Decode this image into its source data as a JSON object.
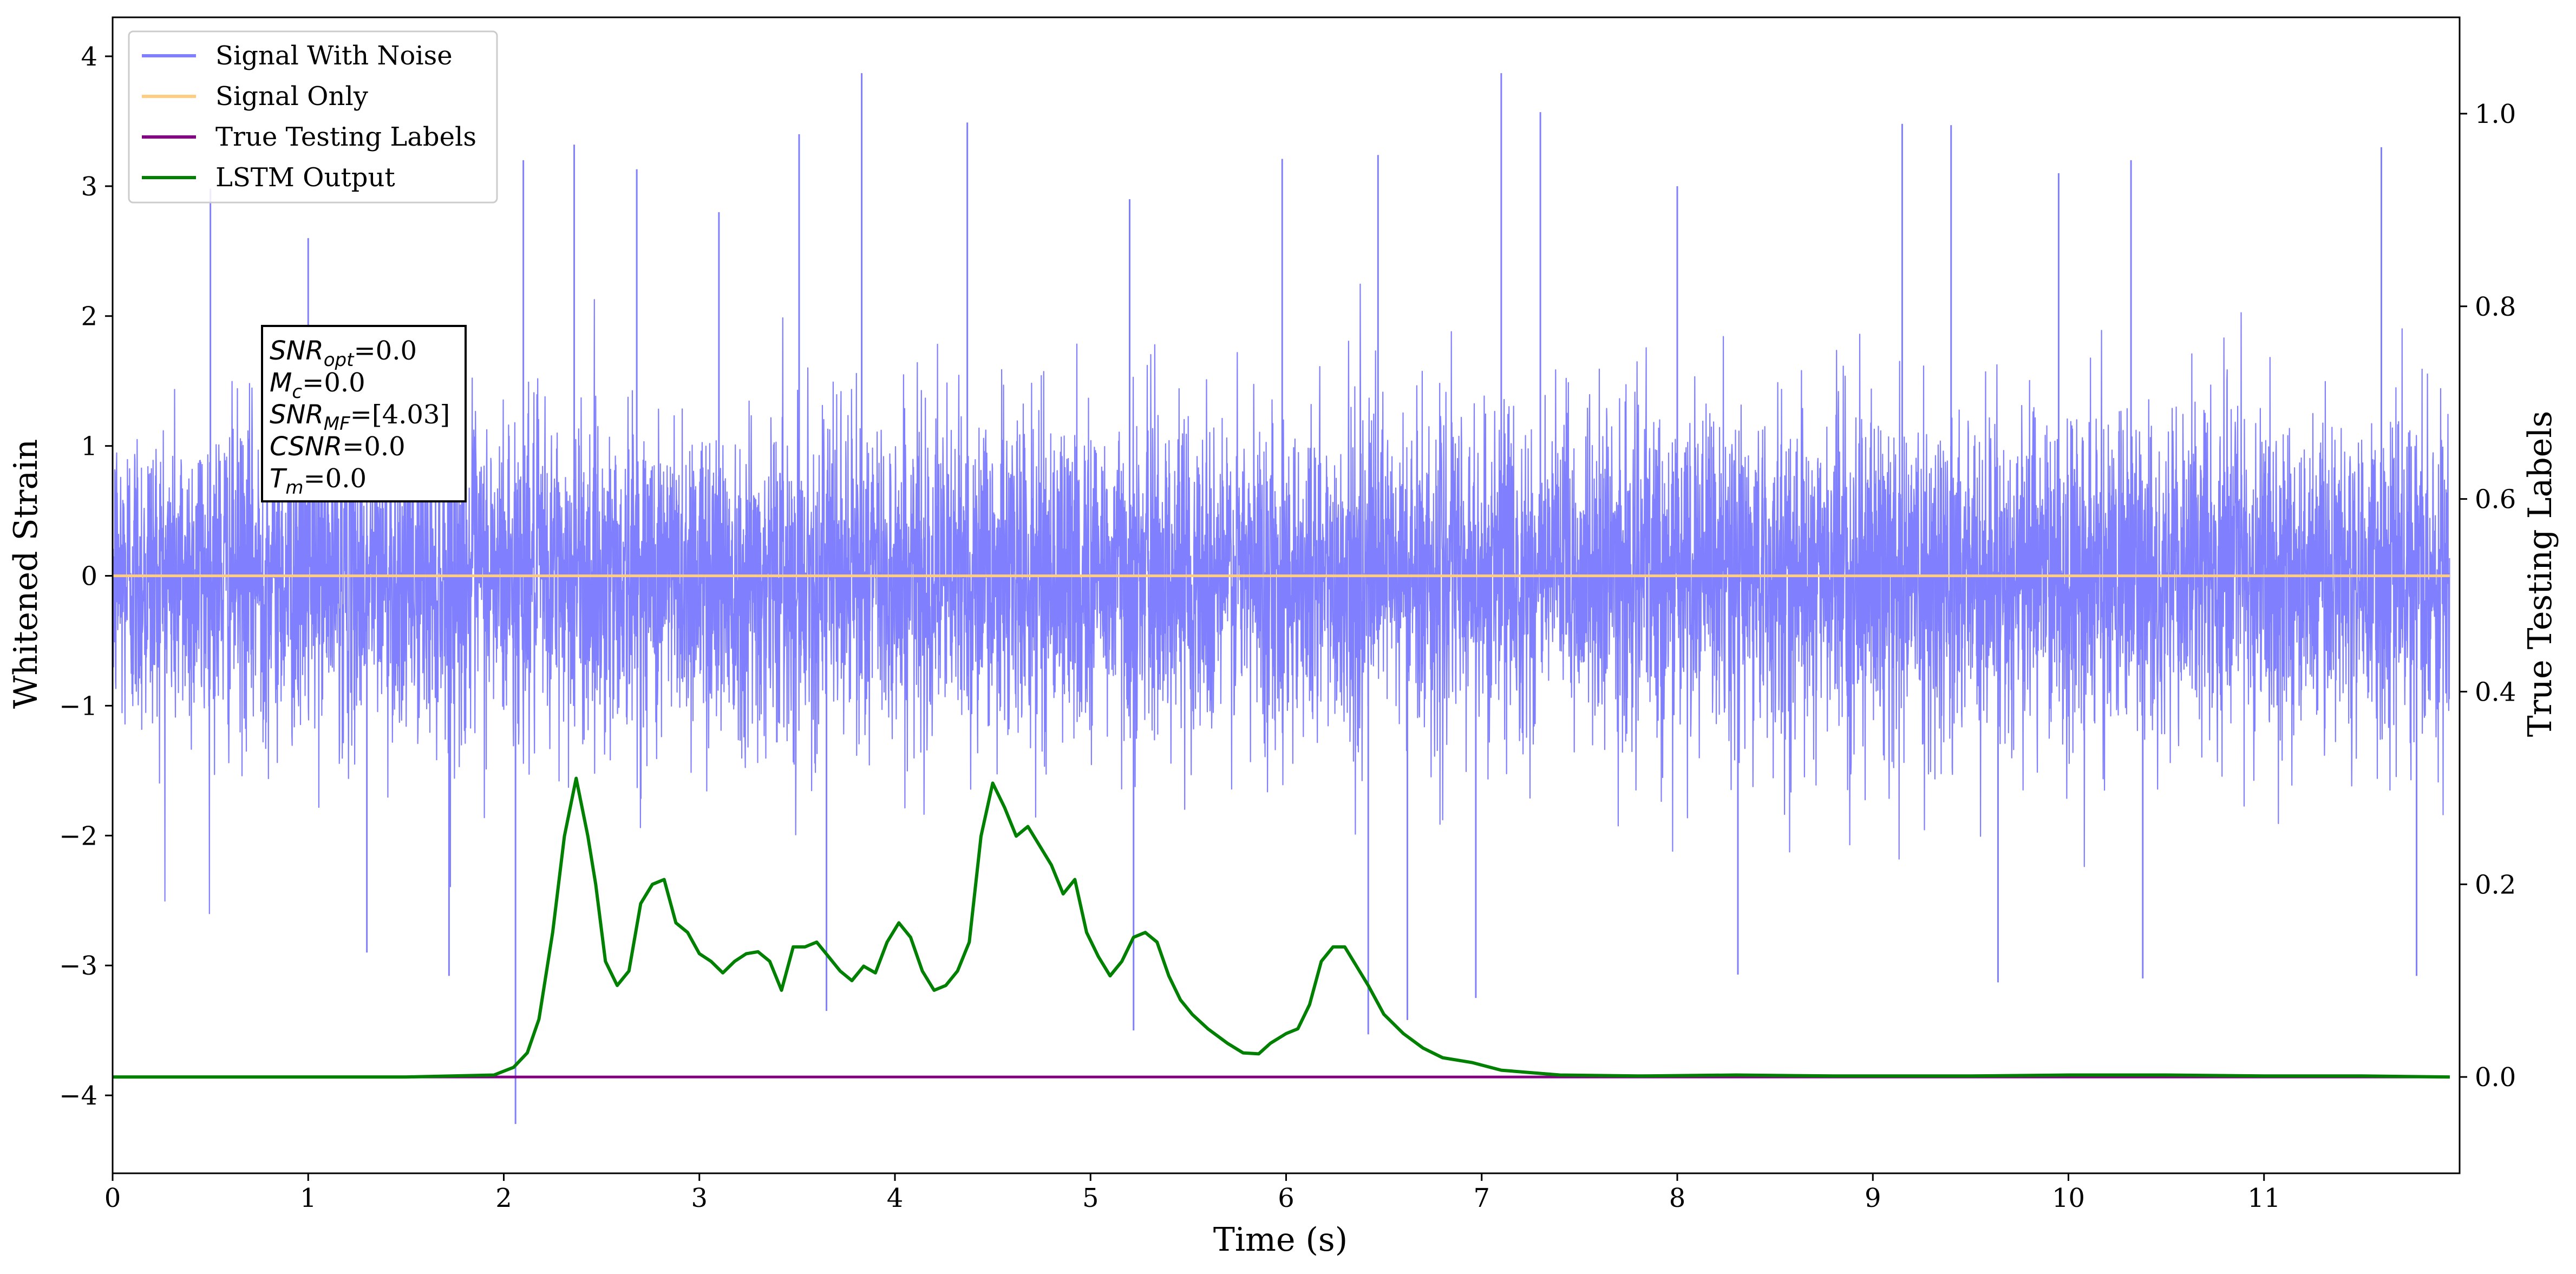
{
  "chart_data": {
    "type": "line",
    "xlabel": "Time (s)",
    "ylabel": "Whitened Strain",
    "ylabel_right": "True Testing Labels",
    "xlim": [
      0,
      12
    ],
    "ylim": [
      -4.6,
      4.3
    ],
    "ylim_right": [
      -0.1,
      1.1
    ],
    "x_ticks": [
      "0",
      "1",
      "2",
      "3",
      "4",
      "5",
      "6",
      "7",
      "8",
      "9",
      "10",
      "11"
    ],
    "y_ticks": [
      "−4",
      "−3",
      "−2",
      "−1",
      "0",
      "1",
      "2",
      "3",
      "4"
    ],
    "y_ticks_right": [
      "0.0",
      "0.2",
      "0.4",
      "0.6",
      "0.8",
      "1.0"
    ],
    "legend_position": "top-left",
    "grid": false,
    "series": [
      {
        "name": "Signal With Noise",
        "axis": "left",
        "color": "#8080ff",
        "description_stats": {
          "typical_range": [
            -1.5,
            1.5
          ],
          "max": 3.87,
          "min": -4.22
        },
        "spikes": [
          {
            "x": 0.5,
            "y": 2.98
          },
          {
            "x": 1.0,
            "y": 2.6
          },
          {
            "x": 2.1,
            "y": 3.2
          },
          {
            "x": 2.36,
            "y": 3.32
          },
          {
            "x": 2.68,
            "y": 3.13
          },
          {
            "x": 3.1,
            "y": 2.8
          },
          {
            "x": 3.51,
            "y": 3.4
          },
          {
            "x": 3.83,
            "y": 3.87
          },
          {
            "x": 4.37,
            "y": 3.49
          },
          {
            "x": 5.2,
            "y": 2.9
          },
          {
            "x": 5.98,
            "y": 3.21
          },
          {
            "x": 6.47,
            "y": 3.24
          },
          {
            "x": 7.1,
            "y": 3.87
          },
          {
            "x": 7.3,
            "y": 3.57
          },
          {
            "x": 8.0,
            "y": 3.0
          },
          {
            "x": 9.15,
            "y": 3.48
          },
          {
            "x": 9.4,
            "y": 3.47
          },
          {
            "x": 9.95,
            "y": 3.1
          },
          {
            "x": 10.32,
            "y": 3.2
          },
          {
            "x": 11.6,
            "y": 3.3
          },
          {
            "x": 2.06,
            "y": -4.22
          },
          {
            "x": 3.65,
            "y": -3.35
          },
          {
            "x": 5.22,
            "y": -3.5
          },
          {
            "x": 6.42,
            "y": -3.53
          },
          {
            "x": 6.62,
            "y": -3.42
          },
          {
            "x": 6.97,
            "y": -3.25
          },
          {
            "x": 8.31,
            "y": -3.07
          },
          {
            "x": 9.64,
            "y": -3.13
          },
          {
            "x": 10.38,
            "y": -3.1
          },
          {
            "x": 11.78,
            "y": -3.08
          },
          {
            "x": 1.72,
            "y": -3.08
          },
          {
            "x": 1.3,
            "y": -2.9
          }
        ]
      },
      {
        "name": "Signal Only",
        "axis": "left",
        "color": "#ffcc80",
        "x": [
          0,
          11.95
        ],
        "y": [
          0,
          0
        ]
      },
      {
        "name": "True Testing Labels",
        "axis": "right",
        "color": "#800080",
        "x": [
          0,
          11.95
        ],
        "y": [
          0,
          0
        ]
      },
      {
        "name": "LSTM Output",
        "axis": "right",
        "color": "#008000",
        "x": [
          0,
          1.5,
          1.95,
          2.05,
          2.12,
          2.18,
          2.25,
          2.31,
          2.37,
          2.43,
          2.47,
          2.52,
          2.58,
          2.64,
          2.7,
          2.76,
          2.82,
          2.88,
          2.94,
          3.0,
          3.06,
          3.12,
          3.18,
          3.24,
          3.3,
          3.36,
          3.42,
          3.48,
          3.54,
          3.6,
          3.66,
          3.72,
          3.78,
          3.84,
          3.9,
          3.96,
          4.02,
          4.08,
          4.14,
          4.2,
          4.26,
          4.32,
          4.38,
          4.44,
          4.5,
          4.56,
          4.62,
          4.68,
          4.74,
          4.8,
          4.86,
          4.92,
          4.98,
          5.04,
          5.1,
          5.16,
          5.22,
          5.28,
          5.34,
          5.4,
          5.46,
          5.52,
          5.6,
          5.7,
          5.78,
          5.86,
          5.92,
          6.0,
          6.06,
          6.12,
          6.18,
          6.24,
          6.3,
          6.36,
          6.42,
          6.5,
          6.6,
          6.7,
          6.8,
          6.95,
          7.1,
          7.4,
          7.8,
          8.3,
          8.8,
          9.5,
          10.0,
          10.5,
          11.0,
          11.5,
          11.95
        ],
        "y": [
          0.0,
          0.0,
          0.002,
          0.01,
          0.025,
          0.06,
          0.15,
          0.25,
          0.31,
          0.25,
          0.2,
          0.12,
          0.095,
          0.11,
          0.18,
          0.2,
          0.205,
          0.16,
          0.15,
          0.128,
          0.12,
          0.108,
          0.12,
          0.128,
          0.13,
          0.12,
          0.09,
          0.135,
          0.135,
          0.14,
          0.125,
          0.11,
          0.1,
          0.115,
          0.108,
          0.14,
          0.16,
          0.145,
          0.11,
          0.09,
          0.095,
          0.11,
          0.14,
          0.25,
          0.305,
          0.28,
          0.25,
          0.26,
          0.24,
          0.22,
          0.19,
          0.205,
          0.15,
          0.125,
          0.105,
          0.12,
          0.145,
          0.15,
          0.14,
          0.105,
          0.08,
          0.065,
          0.05,
          0.035,
          0.025,
          0.024,
          0.035,
          0.045,
          0.05,
          0.075,
          0.12,
          0.135,
          0.135,
          0.115,
          0.095,
          0.065,
          0.045,
          0.03,
          0.02,
          0.015,
          0.007,
          0.002,
          0.001,
          0.002,
          0.001,
          0.001,
          0.002,
          0.002,
          0.001,
          0.001,
          0.0
        ]
      }
    ],
    "annotation": [
      {
        "sym": "SNR",
        "sub": "opt",
        "val": "=0.0"
      },
      {
        "sym": "M",
        "sub": "c",
        "val": "=0.0"
      },
      {
        "sym": "SNR",
        "sub": "MF",
        "val": "=[4.03]"
      },
      {
        "sym": "CSNR",
        "sub": "",
        "val": "=0.0"
      },
      {
        "sym": "T",
        "sub": "m",
        "val": "=0.0"
      }
    ]
  }
}
